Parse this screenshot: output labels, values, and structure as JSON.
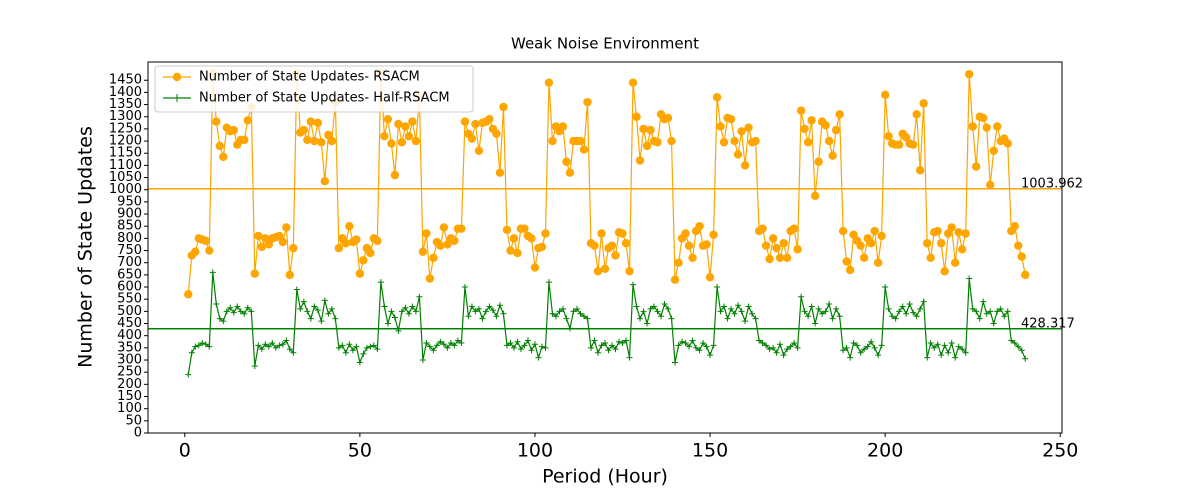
{
  "chart_data": {
    "type": "line",
    "title": "Weak Noise Environment",
    "xlabel": "Period (Hour)",
    "ylabel": "Number of State Updates",
    "xlim": [
      -10.5,
      250.5
    ],
    "xticks": [
      0,
      50,
      100,
      150,
      200,
      250
    ],
    "ylim": [
      0,
      1525
    ],
    "yticks": [
      0,
      50,
      100,
      150,
      200,
      250,
      300,
      350,
      400,
      450,
      500,
      550,
      600,
      650,
      700,
      750,
      800,
      850,
      900,
      950,
      1000,
      1050,
      1100,
      1150,
      1200,
      1250,
      1300,
      1350,
      1400,
      1450
    ],
    "legend": "upper left",
    "x": [
      1,
      2,
      3,
      4,
      5,
      6,
      7,
      8,
      9,
      10,
      11,
      12,
      13,
      14,
      15,
      16,
      17,
      18,
      19,
      20,
      21,
      22,
      23,
      24,
      25,
      26,
      27,
      28,
      29,
      30,
      31,
      32,
      33,
      34,
      35,
      36,
      37,
      38,
      39,
      40,
      41,
      42,
      43,
      44,
      45,
      46,
      47,
      48,
      49,
      50,
      51,
      52,
      53,
      54,
      55,
      56,
      57,
      58,
      59,
      60,
      61,
      62,
      63,
      64,
      65,
      66,
      67,
      68,
      69,
      70,
      71,
      72,
      73,
      74,
      75,
      76,
      77,
      78,
      79,
      80,
      81,
      82,
      83,
      84,
      85,
      86,
      87,
      88,
      89,
      90,
      91,
      92,
      93,
      94,
      95,
      96,
      97,
      98,
      99,
      100,
      101,
      102,
      103,
      104,
      105,
      106,
      107,
      108,
      109,
      110,
      111,
      112,
      113,
      114,
      115,
      116,
      117,
      118,
      119,
      120,
      121,
      122,
      123,
      124,
      125,
      126,
      127,
      128,
      129,
      130,
      131,
      132,
      133,
      134,
      135,
      136,
      137,
      138,
      139,
      140,
      141,
      142,
      143,
      144,
      145,
      146,
      147,
      148,
      149,
      150,
      151,
      152,
      153,
      154,
      155,
      156,
      157,
      158,
      159,
      160,
      161,
      162,
      163,
      164,
      165,
      166,
      167,
      168,
      169,
      170,
      171,
      172,
      173,
      174,
      175,
      176,
      177,
      178,
      179,
      180,
      181,
      182,
      183,
      184,
      185,
      186,
      187,
      188,
      189,
      190,
      191,
      192,
      193,
      194,
      195,
      196,
      197,
      198,
      199,
      200,
      201,
      202,
      203,
      204,
      205,
      206,
      207,
      208,
      209,
      210,
      211,
      212,
      213,
      214,
      215,
      216,
      217,
      218,
      219,
      220,
      221,
      222,
      223,
      224,
      225,
      226,
      227,
      228,
      229,
      230,
      231,
      232,
      233,
      234,
      235,
      236,
      237,
      238,
      239,
      240
    ],
    "series": [
      {
        "name": "Number of State Updates- RSACM",
        "color": "#ffa500",
        "marker": "o",
        "values": [
          570,
          730,
          745,
          800,
          795,
          790,
          750,
          1480,
          1280,
          1180,
          1135,
          1255,
          1240,
          1245,
          1185,
          1205,
          1205,
          1285,
          1340,
          655,
          810,
          765,
          800,
          775,
          800,
          805,
          810,
          785,
          845,
          650,
          760,
          1480,
          1235,
          1245,
          1205,
          1280,
          1200,
          1275,
          1195,
          1035,
          1225,
          1200,
          1360,
          760,
          800,
          780,
          850,
          785,
          795,
          655,
          710,
          760,
          740,
          800,
          790,
          1480,
          1220,
          1290,
          1190,
          1060,
          1270,
          1195,
          1260,
          1220,
          1280,
          1200,
          1380,
          745,
          820,
          635,
          720,
          785,
          770,
          845,
          775,
          800,
          790,
          840,
          840,
          1280,
          1230,
          1210,
          1270,
          1160,
          1275,
          1280,
          1290,
          1250,
          1230,
          1070,
          1340,
          835,
          750,
          800,
          740,
          840,
          840,
          810,
          800,
          680,
          760,
          765,
          820,
          1440,
          1200,
          1260,
          1240,
          1260,
          1115,
          1070,
          1200,
          1200,
          1200,
          1165,
          1360,
          780,
          770,
          665,
          820,
          675,
          760,
          770,
          730,
          825,
          820,
          780,
          665,
          1440,
          1300,
          1120,
          1250,
          1180,
          1245,
          1200,
          1195,
          1310,
          1290,
          1295,
          1200,
          630,
          700,
          800,
          820,
          770,
          720,
          830,
          850,
          770,
          775,
          640,
          815,
          1380,
          1260,
          1195,
          1295,
          1290,
          1200,
          1145,
          1240,
          1100,
          1255,
          1195,
          1200,
          830,
          840,
          770,
          715,
          800,
          760,
          720,
          780,
          720,
          830,
          840,
          755,
          1325,
          1250,
          1195,
          1285,
          975,
          1115,
          1280,
          1265,
          1200,
          1140,
          1245,
          1310,
          830,
          705,
          670,
          815,
          790,
          770,
          720,
          800,
          780,
          830,
          700,
          810,
          1390,
          1220,
          1190,
          1185,
          1185,
          1230,
          1215,
          1190,
          1185,
          1310,
          1080,
          1355,
          780,
          720,
          825,
          830,
          780,
          665,
          820,
          845,
          700,
          825,
          755,
          820,
          1475,
          1260,
          1095,
          1300,
          1295,
          1255,
          1020,
          1160,
          1260,
          1200,
          1210,
          1190,
          830,
          850,
          770,
          725,
          650
        ]
      },
      {
        "name": "Number of State Updates- Half-RSACM",
        "color": "#008000",
        "marker": "+",
        "values": [
          240,
          330,
          355,
          360,
          370,
          365,
          355,
          660,
          530,
          470,
          460,
          500,
          515,
          495,
          520,
          500,
          490,
          515,
          500,
          275,
          360,
          345,
          365,
          355,
          370,
          350,
          360,
          365,
          380,
          345,
          330,
          590,
          510,
          540,
          500,
          470,
          520,
          505,
          460,
          545,
          490,
          510,
          470,
          350,
          360,
          330,
          365,
          340,
          355,
          290,
          325,
          350,
          355,
          360,
          345,
          620,
          520,
          450,
          500,
          475,
          420,
          500,
          515,
          490,
          520,
          500,
          560,
          300,
          370,
          355,
          340,
          360,
          375,
          365,
          350,
          370,
          360,
          380,
          370,
          600,
          480,
          520,
          500,
          510,
          470,
          500,
          520,
          505,
          480,
          525,
          490,
          360,
          370,
          350,
          375,
          345,
          360,
          380,
          340,
          365,
          310,
          355,
          350,
          620,
          490,
          480,
          500,
          510,
          470,
          430,
          500,
          510,
          490,
          480,
          470,
          350,
          380,
          330,
          360,
          370,
          340,
          360,
          345,
          375,
          370,
          380,
          310,
          610,
          520,
          470,
          500,
          450,
          510,
          520,
          500,
          480,
          530,
          510,
          470,
          290,
          360,
          375,
          370,
          355,
          380,
          350,
          340,
          370,
          355,
          320,
          360,
          600,
          500,
          520,
          470,
          510,
          490,
          525,
          500,
          460,
          520,
          490,
          470,
          380,
          370,
          360,
          345,
          350,
          330,
          365,
          320,
          345,
          355,
          370,
          350,
          560,
          500,
          480,
          520,
          450,
          510,
          490,
          500,
          530,
          470,
          510,
          480,
          340,
          350,
          310,
          370,
          360,
          330,
          345,
          355,
          375,
          350,
          320,
          360,
          600,
          510,
          480,
          470,
          500,
          520,
          490,
          530,
          495,
          480,
          510,
          540,
          310,
          370,
          350,
          365,
          320,
          360,
          330,
          370,
          310,
          355,
          345,
          330,
          635,
          510,
          500,
          470,
          540,
          490,
          500,
          450,
          500,
          510,
          480,
          500,
          380,
          370,
          355,
          340,
          305
        ]
      }
    ],
    "hlines": [
      {
        "y": 1003.962,
        "color": "#ffa500"
      },
      {
        "y": 428.317,
        "color": "#008000"
      }
    ]
  }
}
